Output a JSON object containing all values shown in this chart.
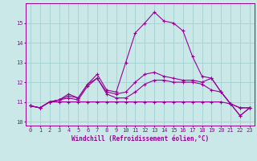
{
  "xlabel": "Windchill (Refroidissement éolien,°C)",
  "background_color": "#cbe8e8",
  "grid_color": "#a8d4d4",
  "line_color": "#990099",
  "xlim": [
    -0.5,
    23.5
  ],
  "ylim": [
    9.8,
    16.0
  ],
  "yticks": [
    10,
    11,
    12,
    13,
    14,
    15
  ],
  "xticks": [
    0,
    1,
    2,
    3,
    4,
    5,
    6,
    7,
    8,
    9,
    10,
    11,
    12,
    13,
    14,
    15,
    16,
    17,
    18,
    19,
    20,
    21,
    22,
    23
  ],
  "series": [
    [
      10.8,
      10.7,
      11.0,
      11.0,
      11.0,
      11.0,
      11.0,
      11.0,
      11.0,
      11.0,
      11.0,
      11.0,
      11.0,
      11.0,
      11.0,
      11.0,
      11.0,
      11.0,
      11.0,
      11.0,
      11.0,
      10.9,
      10.7,
      10.7
    ],
    [
      10.8,
      10.7,
      11.0,
      11.1,
      11.2,
      11.1,
      11.8,
      12.2,
      11.4,
      11.2,
      11.2,
      11.5,
      11.9,
      12.1,
      12.1,
      12.0,
      12.0,
      12.0,
      11.9,
      11.6,
      11.5,
      10.9,
      10.7,
      10.7
    ],
    [
      10.8,
      10.7,
      11.0,
      11.1,
      11.3,
      11.2,
      11.9,
      12.2,
      11.5,
      11.4,
      11.5,
      12.0,
      12.4,
      12.5,
      12.3,
      12.2,
      12.1,
      12.1,
      12.0,
      12.2,
      11.5,
      10.9,
      10.3,
      10.7
    ],
    [
      10.8,
      10.7,
      11.0,
      11.1,
      11.4,
      11.2,
      11.9,
      12.4,
      11.6,
      11.5,
      13.0,
      14.5,
      15.0,
      15.55,
      15.1,
      15.0,
      14.6,
      13.3,
      12.3,
      12.2,
      11.5,
      10.9,
      10.3,
      10.7
    ]
  ]
}
